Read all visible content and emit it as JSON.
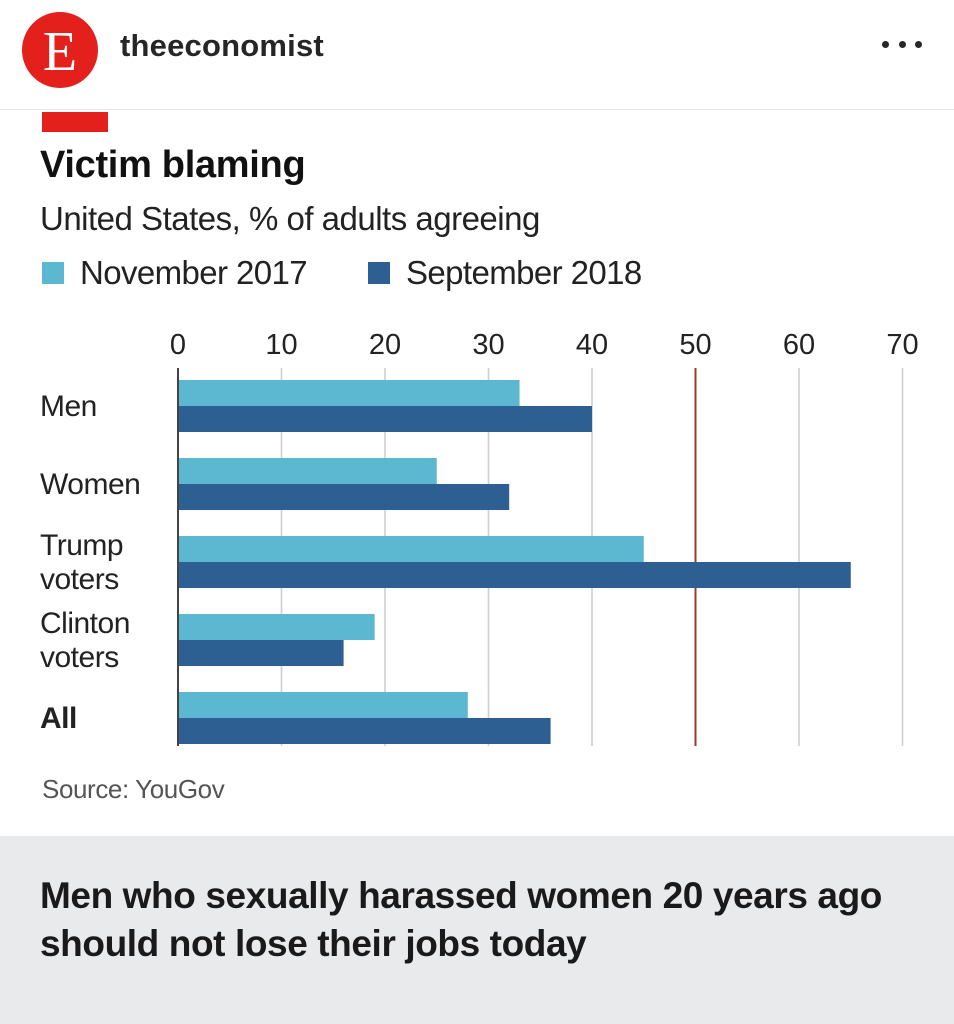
{
  "post": {
    "logo_letter": "E",
    "username": "theeconomist",
    "more_icon": "ellipsis-icon"
  },
  "chart": {
    "accent_color": "#e3201b",
    "source": "Source: YouGov"
  },
  "caption": "Men who sexually harassed women 20 years ago should not lose their jobs today",
  "chart_data": {
    "type": "bar",
    "orientation": "horizontal",
    "title": "Victim blaming",
    "subtitle": "United States, % of adults agreeing",
    "categories": [
      [
        "Men"
      ],
      [
        "Women"
      ],
      [
        "Trump",
        "voters"
      ],
      [
        "Clinton",
        "voters"
      ],
      [
        "All"
      ]
    ],
    "bold_categories": [
      false,
      false,
      false,
      false,
      true
    ],
    "series": [
      {
        "name": "November 2017",
        "color": "#5bb8d0",
        "values": [
          33,
          25,
          45,
          19,
          28
        ]
      },
      {
        "name": "September 2018",
        "color": "#2d5f93",
        "values": [
          40,
          32,
          65,
          16,
          36
        ]
      }
    ],
    "xlim": [
      0,
      70
    ],
    "xticks": [
      0,
      10,
      20,
      30,
      40,
      50,
      60,
      70
    ],
    "highlight_gridline": 50,
    "grid": true,
    "legend_position": "top-left"
  }
}
